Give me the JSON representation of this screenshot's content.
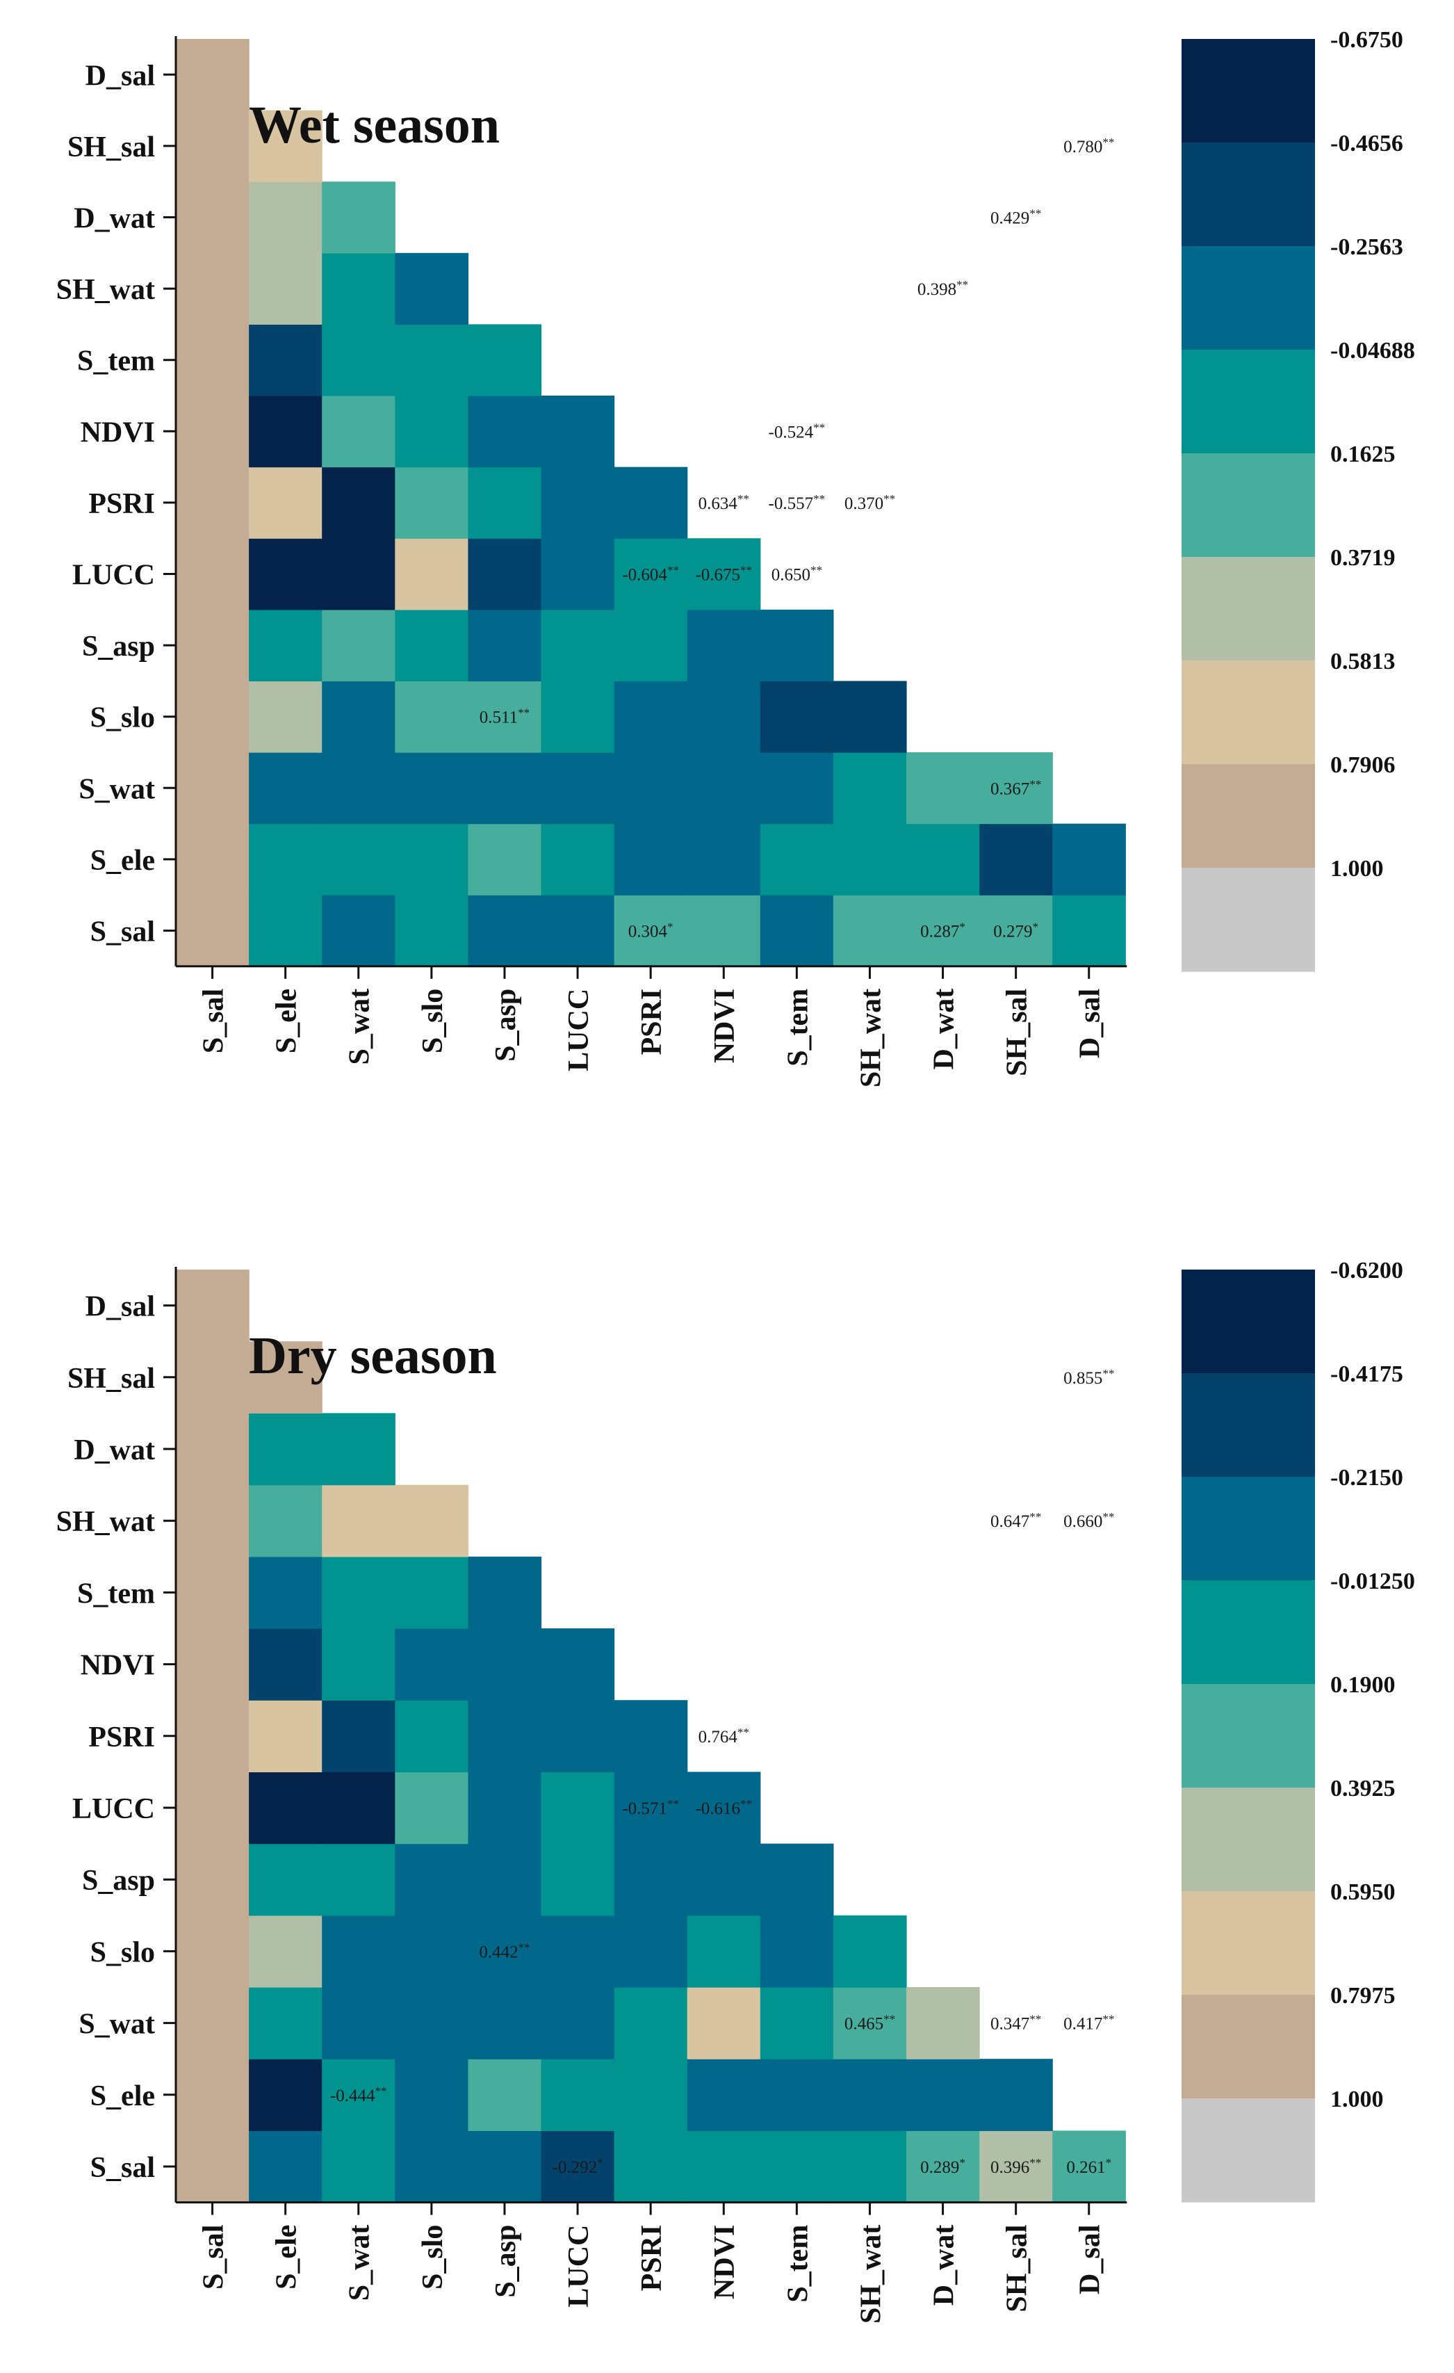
{
  "palette": [
    "#04234a",
    "#03426b",
    "#02688b",
    "#01938f",
    "#47ad9c",
    "#b0bfa5",
    "#d8c4a1",
    "#c3ab94",
    "#c8c8c8"
  ],
  "chart_data": [
    {
      "type": "heatmap",
      "title": "Wet season",
      "variables": [
        "S_sal",
        "S_ele",
        "S_wat",
        "S_slo",
        "S_asp",
        "LUCC",
        "PSRI",
        "NDVI",
        "S_tem",
        "SH_wat",
        "D_wat",
        "SH_sal",
        "D_sal"
      ],
      "colorbar_ticks": [
        "-0.6750",
        "-0.4656",
        "-0.2563",
        "-0.04688",
        "0.1625",
        "0.3719",
        "0.5813",
        "0.7906",
        "1.000"
      ],
      "rows": [
        {
          "y": "S_sal",
          "colors": [
            7,
            3,
            2,
            3,
            2,
            2,
            4,
            4,
            2,
            4,
            4,
            4,
            3
          ]
        },
        {
          "y": "S_ele",
          "colors": [
            7,
            3,
            3,
            3,
            4,
            3,
            2,
            2,
            3,
            3,
            3,
            1,
            2
          ]
        },
        {
          "y": "S_wat",
          "colors": [
            7,
            2,
            2,
            2,
            2,
            2,
            2,
            2,
            2,
            3,
            4,
            4
          ]
        },
        {
          "y": "S_slo",
          "colors": [
            7,
            5,
            2,
            4,
            4,
            3,
            2,
            2,
            1,
            1
          ]
        },
        {
          "y": "S_asp",
          "colors": [
            7,
            3,
            4,
            3,
            2,
            3,
            3,
            2,
            2
          ]
        },
        {
          "y": "LUCC",
          "colors": [
            7,
            0,
            0,
            6,
            1,
            2,
            3,
            3
          ]
        },
        {
          "y": "PSRI",
          "colors": [
            7,
            6,
            0,
            4,
            3,
            2,
            2
          ]
        },
        {
          "y": "NDVI",
          "colors": [
            7,
            0,
            4,
            3,
            2,
            2
          ]
        },
        {
          "y": "S_tem",
          "colors": [
            7,
            1,
            3,
            3,
            3
          ]
        },
        {
          "y": "SH_wat",
          "colors": [
            7,
            5,
            3,
            2
          ]
        },
        {
          "y": "D_wat",
          "colors": [
            7,
            5,
            4
          ]
        },
        {
          "y": "SH_sal",
          "colors": [
            7,
            6
          ]
        },
        {
          "y": "D_sal",
          "colors": [
            7
          ]
        }
      ],
      "annotations": [
        {
          "y": "SH_sal",
          "x": "D_sal",
          "value": "0.780",
          "stars": "**"
        },
        {
          "y": "D_wat",
          "x": "SH_sal",
          "value": "0.429",
          "stars": "**"
        },
        {
          "y": "SH_wat",
          "x": "D_wat",
          "value": "0.398",
          "stars": "**"
        },
        {
          "y": "NDVI",
          "x": "S_tem",
          "value": "-0.524",
          "stars": "**"
        },
        {
          "y": "PSRI",
          "x": "NDVI",
          "value": "0.634",
          "stars": "**"
        },
        {
          "y": "PSRI",
          "x": "S_tem",
          "value": "-0.557",
          "stars": "**"
        },
        {
          "y": "PSRI",
          "x": "SH_wat",
          "value": "0.370",
          "stars": "**"
        },
        {
          "y": "LUCC",
          "x": "PSRI",
          "value": "-0.604",
          "stars": "**"
        },
        {
          "y": "LUCC",
          "x": "NDVI",
          "value": "-0.675",
          "stars": "**"
        },
        {
          "y": "LUCC",
          "x": "S_tem",
          "value": "0.650",
          "stars": "**"
        },
        {
          "y": "S_slo",
          "x": "S_asp",
          "value": "0.511",
          "stars": "**"
        },
        {
          "y": "S_wat",
          "x": "SH_sal",
          "value": "0.367",
          "stars": "**"
        },
        {
          "y": "S_sal",
          "x": "PSRI",
          "value": "0.304",
          "stars": "*"
        },
        {
          "y": "S_sal",
          "x": "D_wat",
          "value": "0.287",
          "stars": "*"
        },
        {
          "y": "S_sal",
          "x": "SH_sal",
          "value": "0.279",
          "stars": "*"
        }
      ]
    },
    {
      "type": "heatmap",
      "title": "Dry season",
      "variables": [
        "S_sal",
        "S_ele",
        "S_wat",
        "S_slo",
        "S_asp",
        "LUCC",
        "PSRI",
        "NDVI",
        "S_tem",
        "SH_wat",
        "D_wat",
        "SH_sal",
        "D_sal"
      ],
      "colorbar_ticks": [
        "-0.6200",
        "-0.4175",
        "-0.2150",
        "-0.01250",
        "0.1900",
        "0.3925",
        "0.5950",
        "0.7975",
        "1.000"
      ],
      "rows": [
        {
          "y": "S_sal",
          "colors": [
            7,
            2,
            3,
            2,
            2,
            1,
            3,
            3,
            3,
            3,
            4,
            5,
            4
          ]
        },
        {
          "y": "S_ele",
          "colors": [
            7,
            0,
            3,
            2,
            4,
            3,
            3,
            2,
            2,
            2,
            2,
            2
          ]
        },
        {
          "y": "S_wat",
          "colors": [
            7,
            3,
            2,
            2,
            2,
            2,
            3,
            6,
            3,
            4,
            5
          ]
        },
        {
          "y": "S_slo",
          "colors": [
            7,
            5,
            2,
            2,
            2,
            2,
            2,
            3,
            2,
            3
          ]
        },
        {
          "y": "S_asp",
          "colors": [
            7,
            3,
            3,
            2,
            2,
            3,
            2,
            2,
            2
          ]
        },
        {
          "y": "LUCC",
          "colors": [
            7,
            0,
            0,
            4,
            2,
            3,
            2,
            2
          ]
        },
        {
          "y": "PSRI",
          "colors": [
            7,
            6,
            1,
            3,
            2,
            2,
            2
          ]
        },
        {
          "y": "NDVI",
          "colors": [
            7,
            1,
            3,
            2,
            2,
            2
          ]
        },
        {
          "y": "S_tem",
          "colors": [
            7,
            2,
            3,
            3,
            2
          ]
        },
        {
          "y": "SH_wat",
          "colors": [
            7,
            4,
            6,
            6
          ]
        },
        {
          "y": "D_wat",
          "colors": [
            7,
            3,
            3
          ]
        },
        {
          "y": "SH_sal",
          "colors": [
            7,
            7
          ]
        },
        {
          "y": "D_sal",
          "colors": [
            7
          ]
        }
      ],
      "annotations": [
        {
          "y": "SH_sal",
          "x": "D_sal",
          "value": "0.855",
          "stars": "**"
        },
        {
          "y": "SH_wat",
          "x": "SH_sal",
          "value": "0.647",
          "stars": "**"
        },
        {
          "y": "SH_wat",
          "x": "D_sal",
          "value": "0.660",
          "stars": "**"
        },
        {
          "y": "PSRI",
          "x": "NDVI",
          "value": "0.764",
          "stars": "**"
        },
        {
          "y": "LUCC",
          "x": "PSRI",
          "value": "-0.571",
          "stars": "**"
        },
        {
          "y": "LUCC",
          "x": "NDVI",
          "value": "-0.616",
          "stars": "**"
        },
        {
          "y": "S_slo",
          "x": "S_asp",
          "value": "0.442",
          "stars": "**"
        },
        {
          "y": "S_wat",
          "x": "SH_wat",
          "value": "0.465",
          "stars": "**"
        },
        {
          "y": "S_wat",
          "x": "SH_sal",
          "value": "0.347",
          "stars": "**"
        },
        {
          "y": "S_wat",
          "x": "D_sal",
          "value": "0.417",
          "stars": "**"
        },
        {
          "y": "S_ele",
          "x": "S_wat",
          "value": "-0.444",
          "stars": "**"
        },
        {
          "y": "S_sal",
          "x": "LUCC",
          "value": "-0.292",
          "stars": "*"
        },
        {
          "y": "S_sal",
          "x": "D_wat",
          "value": "0.289",
          "stars": "*"
        },
        {
          "y": "S_sal",
          "x": "SH_sal",
          "value": "0.396",
          "stars": "**"
        },
        {
          "y": "S_sal",
          "x": "D_sal",
          "value": "0.261",
          "stars": "*"
        }
      ]
    }
  ]
}
